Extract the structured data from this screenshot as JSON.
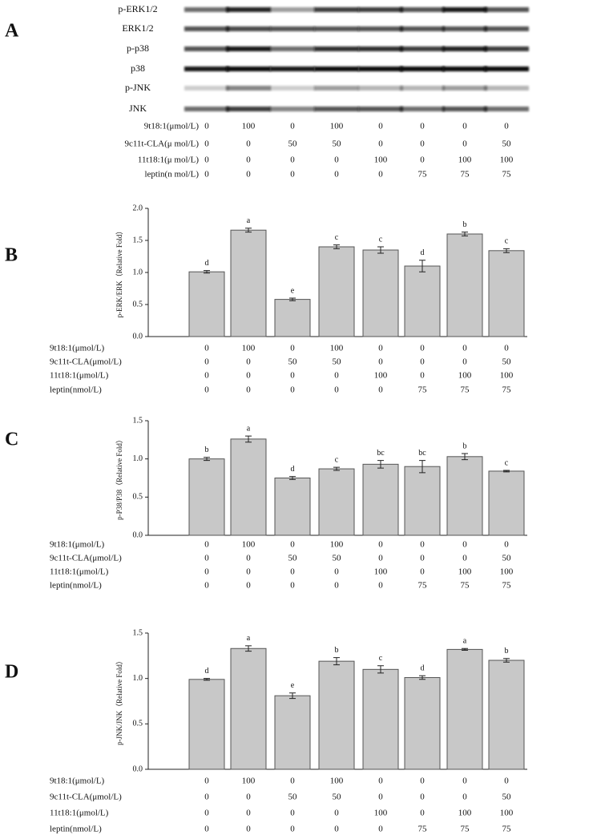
{
  "blot": {
    "panel": "A",
    "bands": [
      "p-ERK1/2",
      "ERK1/2",
      "p-p38",
      "p38",
      "p-JNK",
      "JNK"
    ],
    "conditions": [
      {
        "name": "9t18:1(μmol/L)",
        "values": [
          0,
          100,
          0,
          100,
          0,
          0,
          0,
          0
        ]
      },
      {
        "name": "9c11t-CLA(μ mol/L)",
        "values": [
          0,
          0,
          50,
          50,
          0,
          0,
          0,
          50
        ]
      },
      {
        "name": "11t18:1(μ mol/L)",
        "values": [
          0,
          0,
          0,
          0,
          100,
          0,
          100,
          100
        ]
      },
      {
        "name": "leptin(n mol/L)",
        "values": [
          0,
          0,
          0,
          0,
          0,
          75,
          75,
          75
        ]
      }
    ]
  },
  "chart_data": [
    {
      "type": "bar",
      "panel": "B",
      "y_label": "p-ERK/ERK（Relative Fold）",
      "values": [
        1.01,
        1.66,
        0.58,
        1.4,
        1.35,
        1.1,
        1.6,
        1.34
      ],
      "errors": [
        0.02,
        0.03,
        0.02,
        0.03,
        0.05,
        0.09,
        0.03,
        0.03
      ],
      "annotations": [
        "d",
        "a",
        "e",
        "c",
        "c",
        "d",
        "b",
        "c"
      ],
      "color": "#c8c8c8",
      "ylim": [
        0,
        2
      ],
      "yticks": [
        {
          "value": 0,
          "label": "0.0"
        },
        0.5,
        {
          "value": 1,
          "label": "1.0"
        },
        1.5,
        {
          "value": 2,
          "label": "2.0"
        }
      ],
      "conditions": [
        {
          "name": "9t18:1(μmol/L)",
          "values": [
            0,
            100,
            0,
            100,
            0,
            0,
            0,
            0
          ]
        },
        {
          "name": "9c11t-CLA(μmol/L)",
          "values": [
            0,
            0,
            50,
            50,
            0,
            0,
            0,
            50
          ]
        },
        {
          "name": "11t18:1(μmol/L)",
          "values": [
            0,
            0,
            0,
            0,
            100,
            0,
            100,
            100
          ]
        },
        {
          "name": "leptin(nmol/L)",
          "values": [
            0,
            0,
            0,
            0,
            0,
            75,
            75,
            75
          ]
        }
      ]
    },
    {
      "type": "bar",
      "panel": "C",
      "y_label": "p-P38/P38（Relative Fold）",
      "values": [
        1.0,
        1.26,
        0.75,
        0.87,
        0.93,
        0.9,
        1.03,
        0.84
      ],
      "errors": [
        0.02,
        0.04,
        0.02,
        0.02,
        0.05,
        0.08,
        0.04,
        0.01
      ],
      "annotations": [
        "b",
        "a",
        "d",
        "c",
        "bc",
        "bc",
        "b",
        "c"
      ],
      "color": "#c8c8c8",
      "ylim": [
        0,
        1.5
      ],
      "yticks": [
        {
          "value": 0,
          "label": "0.0"
        },
        0.5,
        {
          "value": 1,
          "label": "1.0"
        },
        1.5
      ],
      "conditions": [
        {
          "name": "9t18:1(μmol/L)",
          "values": [
            0,
            100,
            0,
            100,
            0,
            0,
            0,
            0
          ]
        },
        {
          "name": "9c11t-CLA(μmol/L)",
          "values": [
            0,
            0,
            50,
            50,
            0,
            0,
            0,
            50
          ]
        },
        {
          "name": "11t18:1(μmol/L)",
          "values": [
            0,
            0,
            0,
            0,
            100,
            0,
            100,
            100
          ]
        },
        {
          "name": "leptin(nmol/L)",
          "values": [
            0,
            0,
            0,
            0,
            0,
            75,
            75,
            75
          ]
        }
      ]
    },
    {
      "type": "bar",
      "panel": "D",
      "y_label": "p-JNK/JNK（Relative Fold）",
      "values": [
        0.99,
        1.33,
        0.81,
        1.19,
        1.1,
        1.01,
        1.32,
        1.2
      ],
      "errors": [
        0.01,
        0.03,
        0.03,
        0.04,
        0.04,
        0.02,
        0.01,
        0.02
      ],
      "annotations": [
        "d",
        "a",
        "e",
        "b",
        "c",
        "d",
        "a",
        "b"
      ],
      "color": "#c8c8c8",
      "ylim": [
        0,
        1.5
      ],
      "yticks": [
        {
          "value": 0,
          "label": "0.0"
        },
        0.5,
        {
          "value": 1,
          "label": "1.0"
        },
        1.5
      ],
      "conditions": [
        {
          "name": "9t18:1(μmol/L)",
          "values": [
            0,
            100,
            0,
            100,
            0,
            0,
            0,
            0
          ]
        },
        {
          "name": "9c11t-CLA(μmol/L)",
          "values": [
            0,
            0,
            50,
            50,
            0,
            0,
            0,
            50
          ]
        },
        {
          "name": "11t18:1(μmol/L)",
          "values": [
            0,
            0,
            0,
            0,
            100,
            0,
            100,
            100
          ]
        },
        {
          "name": "leptin(nmol/L)",
          "values": [
            0,
            0,
            0,
            0,
            0,
            75,
            75,
            75
          ]
        }
      ]
    }
  ]
}
